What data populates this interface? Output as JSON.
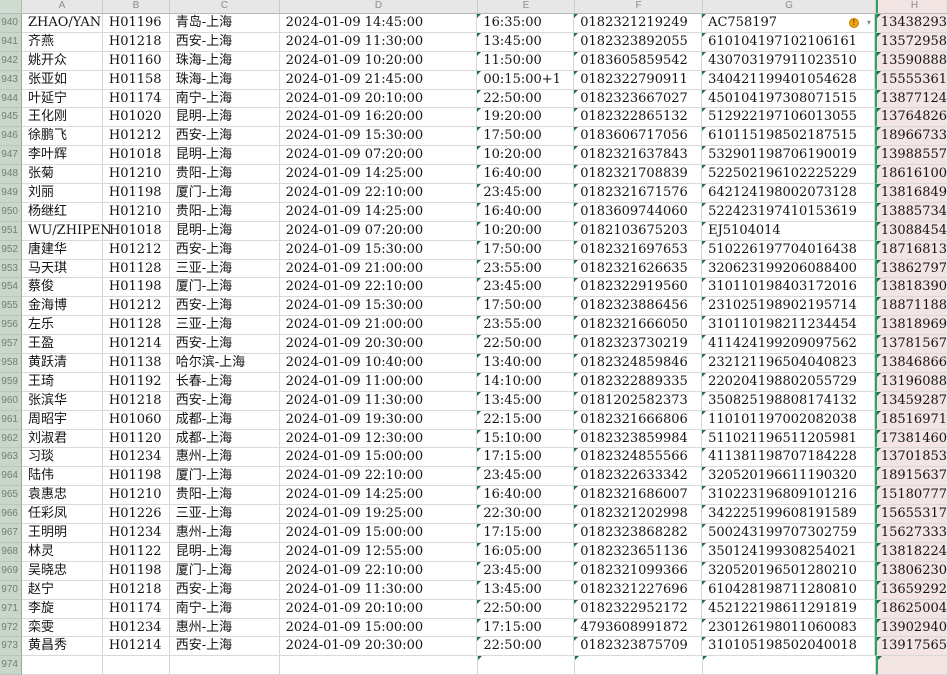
{
  "sheet": {
    "column_headers": [
      "A",
      "B",
      "C",
      "D",
      "E",
      "F",
      "G",
      "H"
    ],
    "colors": {
      "grid_line": "#d6d6d6",
      "column_header_bg": "#e7e7e7",
      "row_header_bg": "#c9d7cb",
      "selected_column_bg": "#f3e5e3",
      "selected_column_border": "#2fa06a",
      "error_triangle": "#1e7145",
      "warning_icon": "#f2a30a"
    },
    "warning_icon_glyph": "!",
    "caret_glyph": "▾",
    "rows": [
      {
        "n": "940",
        "a": "ZHAO/YAN",
        "b": "H01196",
        "c": "青岛-上海",
        "d": "2024-01-09 14:45:00",
        "e": "16:35:00",
        "f": "0182321219249",
        "g": "AC758197",
        "h": "13438293",
        "w": true
      },
      {
        "n": "941",
        "a": "齐燕",
        "b": "H01218",
        "c": "西安-上海",
        "d": "2024-01-09 11:30:00",
        "e": "13:45:00",
        "f": "0182323892055",
        "g": "610104197102106161",
        "h": "13572958"
      },
      {
        "n": "942",
        "a": "姚开众",
        "b": "H01160",
        "c": "珠海-上海",
        "d": "2024-01-09 10:20:00",
        "e": "11:50:00",
        "f": "0183605859542",
        "g": "430703197911023510",
        "h": "13590888"
      },
      {
        "n": "943",
        "a": "张亚如",
        "b": "H01158",
        "c": "珠海-上海",
        "d": "2024-01-09 21:45:00",
        "e": "00:15:00+1",
        "f": "0182322790911",
        "g": "340421199401054628",
        "h": "15555361"
      },
      {
        "n": "944",
        "a": "叶延宁",
        "b": "H01174",
        "c": "南宁-上海",
        "d": "2024-01-09 20:10:00",
        "e": "22:50:00",
        "f": "0182323667027",
        "g": "450104197308071515",
        "h": "13877124"
      },
      {
        "n": "945",
        "a": "王化刚",
        "b": "H01020",
        "c": "昆明-上海",
        "d": "2024-01-09 16:20:00",
        "e": "19:20:00",
        "f": "0182322865132",
        "g": "512922197106013055",
        "h": "13764826"
      },
      {
        "n": "946",
        "a": "徐鹏飞",
        "b": "H01212",
        "c": "西安-上海",
        "d": "2024-01-09 15:30:00",
        "e": "17:50:00",
        "f": "0183606717056",
        "g": "610115198502187515",
        "h": "18966733"
      },
      {
        "n": "947",
        "a": "李叶辉",
        "b": "H01018",
        "c": "昆明-上海",
        "d": "2024-01-09 07:20:00",
        "e": "10:20:00",
        "f": "0182321637843",
        "g": "532901198706190019",
        "h": "13988557"
      },
      {
        "n": "948",
        "a": "张菊",
        "b": "H01210",
        "c": "贵阳-上海",
        "d": "2024-01-09 14:25:00",
        "e": "16:40:00",
        "f": "0182321708839",
        "g": "522502196102225229",
        "h": "18616100"
      },
      {
        "n": "949",
        "a": "刘丽",
        "b": "H01198",
        "c": "厦门-上海",
        "d": "2024-01-09 22:10:00",
        "e": "23:45:00",
        "f": "0182321671576",
        "g": "642124198002073128",
        "h": "13816849"
      },
      {
        "n": "950",
        "a": "杨继红",
        "b": "H01210",
        "c": "贵阳-上海",
        "d": "2024-01-09 14:25:00",
        "e": "16:40:00",
        "f": "0183609744060",
        "g": "522423197410153619",
        "h": "13885734"
      },
      {
        "n": "951",
        "a": "WU/ZHIPEN",
        "b": "H01018",
        "c": "昆明-上海",
        "d": "2024-01-09 07:20:00",
        "e": "10:20:00",
        "f": "0182103675203",
        "g": "EJ5104014",
        "h": "13088454"
      },
      {
        "n": "952",
        "a": "唐建华",
        "b": "H01212",
        "c": "西安-上海",
        "d": "2024-01-09 15:30:00",
        "e": "17:50:00",
        "f": "0182321697653",
        "g": "510226197704016438",
        "h": "18716813"
      },
      {
        "n": "953",
        "a": "马天琪",
        "b": "H01128",
        "c": "三亚-上海",
        "d": "2024-01-09 21:00:00",
        "e": "23:55:00",
        "f": "0182321626635",
        "g": "320623199206088400",
        "h": "13862797"
      },
      {
        "n": "954",
        "a": "蔡俊",
        "b": "H01198",
        "c": "厦门-上海",
        "d": "2024-01-09 22:10:00",
        "e": "23:45:00",
        "f": "0182322919560",
        "g": "310110198403172016",
        "h": "13818390"
      },
      {
        "n": "955",
        "a": "金海博",
        "b": "H01212",
        "c": "西安-上海",
        "d": "2024-01-09 15:30:00",
        "e": "17:50:00",
        "f": "0182323886456",
        "g": "231025198902195714",
        "h": "18871188"
      },
      {
        "n": "956",
        "a": "左乐",
        "b": "H01128",
        "c": "三亚-上海",
        "d": "2024-01-09 21:00:00",
        "e": "23:55:00",
        "f": "0182321666050",
        "g": "310110198211234454",
        "h": "13818969"
      },
      {
        "n": "957",
        "a": "王盈",
        "b": "H01214",
        "c": "西安-上海",
        "d": "2024-01-09 20:30:00",
        "e": "22:50:00",
        "f": "0182323730219",
        "g": "411424199209097562",
        "h": "13781567"
      },
      {
        "n": "958",
        "a": "黄跃清",
        "b": "H01138",
        "c": "哈尔滨-上海",
        "d": "2024-01-09 10:40:00",
        "e": "13:40:00",
        "f": "0182324859846",
        "g": "232121196504040823",
        "h": "13846866"
      },
      {
        "n": "959",
        "a": "王琦",
        "b": "H01192",
        "c": "长春-上海",
        "d": "2024-01-09 11:00:00",
        "e": "14:10:00",
        "f": "0182322889335",
        "g": "220204198802055729",
        "h": "13196088"
      },
      {
        "n": "960",
        "a": "张滨华",
        "b": "H01218",
        "c": "西安-上海",
        "d": "2024-01-09 11:30:00",
        "e": "13:45:00",
        "f": "0181202582373",
        "g": "350825198808174132",
        "h": "13459287"
      },
      {
        "n": "961",
        "a": "周昭宇",
        "b": "H01060",
        "c": "成都-上海",
        "d": "2024-01-09 19:30:00",
        "e": "22:15:00",
        "f": "0182321666806",
        "g": "110101197002082038",
        "h": "18516971"
      },
      {
        "n": "962",
        "a": "刘淑君",
        "b": "H01120",
        "c": "成都-上海",
        "d": "2024-01-09 12:30:00",
        "e": "15:10:00",
        "f": "0182323859984",
        "g": "511021196511205981",
        "h": "17381460"
      },
      {
        "n": "963",
        "a": "习琰",
        "b": "H01234",
        "c": "惠州-上海",
        "d": "2024-01-09 15:00:00",
        "e": "17:15:00",
        "f": "0182324855566",
        "g": "411381198707184228",
        "h": "13701853"
      },
      {
        "n": "964",
        "a": "陆伟",
        "b": "H01198",
        "c": "厦门-上海",
        "d": "2024-01-09 22:10:00",
        "e": "23:45:00",
        "f": "0182322633342",
        "g": "320520196611190320",
        "h": "18915637"
      },
      {
        "n": "965",
        "a": "袁惠忠",
        "b": "H01210",
        "c": "贵阳-上海",
        "d": "2024-01-09 14:25:00",
        "e": "16:40:00",
        "f": "0182321686007",
        "g": "310223196809101216",
        "h": "15180777"
      },
      {
        "n": "966",
        "a": "任彩凤",
        "b": "H01226",
        "c": "三亚-上海",
        "d": "2024-01-09 19:25:00",
        "e": "22:30:00",
        "f": "0182321202998",
        "g": "342225199608191589",
        "h": "15655317"
      },
      {
        "n": "967",
        "a": "王明明",
        "b": "H01234",
        "c": "惠州-上海",
        "d": "2024-01-09 15:00:00",
        "e": "17:15:00",
        "f": "0182323868282",
        "g": "500243199707302759",
        "h": "15627333"
      },
      {
        "n": "968",
        "a": "林灵",
        "b": "H01122",
        "c": "昆明-上海",
        "d": "2024-01-09 12:55:00",
        "e": "16:05:00",
        "f": "0182323651136",
        "g": "350124199308254021",
        "h": "13818224"
      },
      {
        "n": "969",
        "a": "吴晓忠",
        "b": "H01198",
        "c": "厦门-上海",
        "d": "2024-01-09 22:10:00",
        "e": "23:45:00",
        "f": "0182321099366",
        "g": "320520196501280210",
        "h": "13806230"
      },
      {
        "n": "970",
        "a": "赵宁",
        "b": "H01218",
        "c": "西安-上海",
        "d": "2024-01-09 11:30:00",
        "e": "13:45:00",
        "f": "0182321227696",
        "g": "610428198711280810",
        "h": "13659292"
      },
      {
        "n": "971",
        "a": "李旋",
        "b": "H01174",
        "c": "南宁-上海",
        "d": "2024-01-09 20:10:00",
        "e": "22:50:00",
        "f": "0182322952172",
        "g": "452122198611291819",
        "h": "18625004"
      },
      {
        "n": "972",
        "a": "栾雯",
        "b": "H01234",
        "c": "惠州-上海",
        "d": "2024-01-09 15:00:00",
        "e": "17:15:00",
        "f": "4793608991872",
        "g": "230126198011060083",
        "h": "13902940"
      },
      {
        "n": "973",
        "a": "黄昌秀",
        "b": "H01214",
        "c": "西安-上海",
        "d": "2024-01-09 20:30:00",
        "e": "22:50:00",
        "f": "0182323875709",
        "g": "310105198502040018",
        "h": "13917565"
      },
      {
        "n": "974",
        "a": "",
        "b": "",
        "c": "",
        "d": "",
        "e": "",
        "f": "",
        "g": "",
        "h": ""
      }
    ]
  }
}
